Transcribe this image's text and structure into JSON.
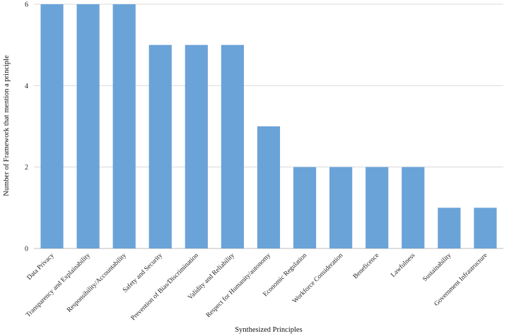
{
  "chart_data": {
    "type": "bar",
    "categories": [
      "Data Privacy",
      "Transparency and Explainability",
      "Responsibility/Accountability",
      "Safety and Security",
      "Prevention of Bias/Discrimination",
      "Validity and Reliability",
      "Respect for Humanity/autonomy",
      "Economic Regulation",
      "Workforce Consideration",
      "Beneficence",
      "Lawfulness",
      "Sustainability",
      "Government Infrastructure"
    ],
    "values": [
      6,
      6,
      6,
      5,
      5,
      5,
      3,
      2,
      2,
      2,
      2,
      1,
      1
    ],
    "xlabel": "Synthesized Principles",
    "ylabel": "Number of Framework that mention a principle",
    "ylim": [
      0,
      6
    ],
    "yticks": [
      0,
      2,
      4,
      6
    ],
    "grid": true,
    "bar_color": "#6aa3d8"
  }
}
